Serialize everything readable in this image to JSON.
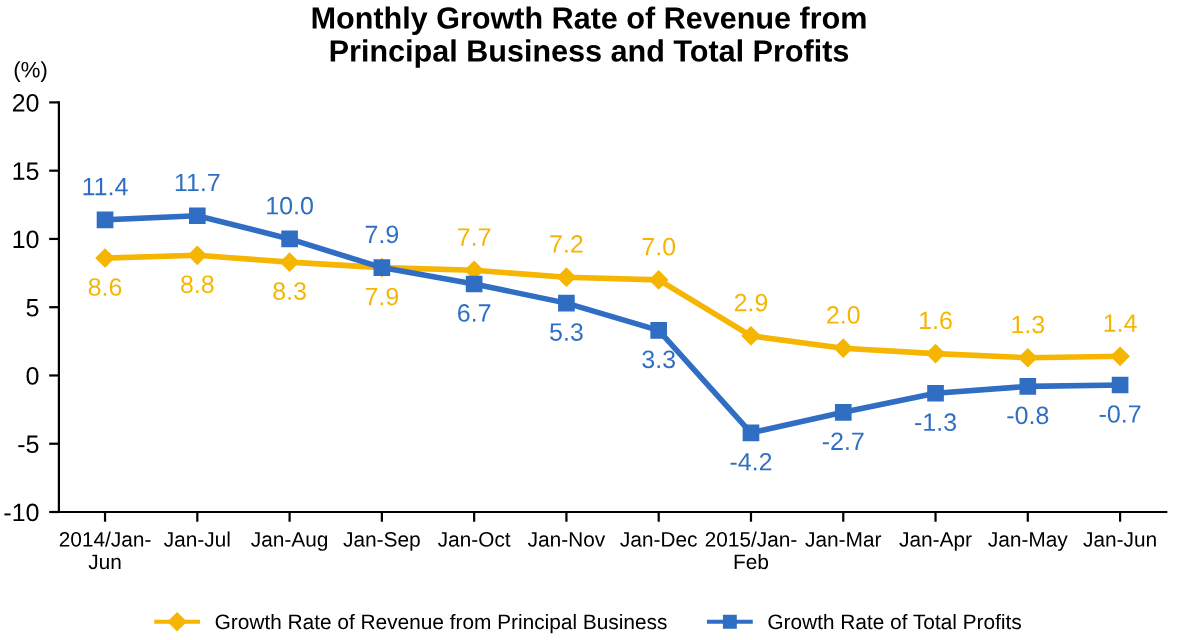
{
  "chart_data": {
    "type": "line",
    "title": "Monthly Growth Rate of Revenue from\nPrincipal Business and Total Profits",
    "ylabel": "(%)",
    "categories": [
      "2014/Jan-\nJun",
      "Jan-Jul",
      "Jan-Aug",
      "Jan-Sep",
      "Jan-Oct",
      "Jan-Nov",
      "Jan-Dec",
      "2015/Jan-\nFeb",
      "Jan-Mar",
      "Jan-Apr",
      "Jan-May",
      "Jan-Jun"
    ],
    "series": [
      {
        "name": "Growth Rate of Revenue from Principal Business",
        "color": "#f5b500",
        "marker": "diamond",
        "values": [
          8.6,
          8.8,
          8.3,
          7.9,
          7.7,
          7.2,
          7.0,
          2.9,
          2.0,
          1.6,
          1.3,
          1.4
        ],
        "value_labels": [
          "8.6",
          "8.8",
          "8.3",
          "7.9",
          "7.7",
          "7.2",
          "7.0",
          "2.9",
          "2.0",
          "1.6",
          "1.3",
          "1.4"
        ]
      },
      {
        "name": "Growth Rate of Total Profits",
        "color": "#2f6ec2",
        "marker": "square",
        "values": [
          11.4,
          11.7,
          10.0,
          7.9,
          6.7,
          5.3,
          3.3,
          -4.2,
          -2.7,
          -1.3,
          -0.8,
          -0.7
        ],
        "value_labels": [
          "11.4",
          "11.7",
          "10.0",
          "7.9",
          "6.7",
          "5.3",
          "3.3",
          "-4.2",
          "-2.7",
          "-1.3",
          "-0.8",
          "-0.7"
        ]
      }
    ],
    "ylim": [
      -10,
      20
    ],
    "yticks": [
      -10,
      -5,
      0,
      5,
      10,
      15,
      20
    ],
    "grid": false,
    "legend": "bottom",
    "line_style": "solid"
  }
}
